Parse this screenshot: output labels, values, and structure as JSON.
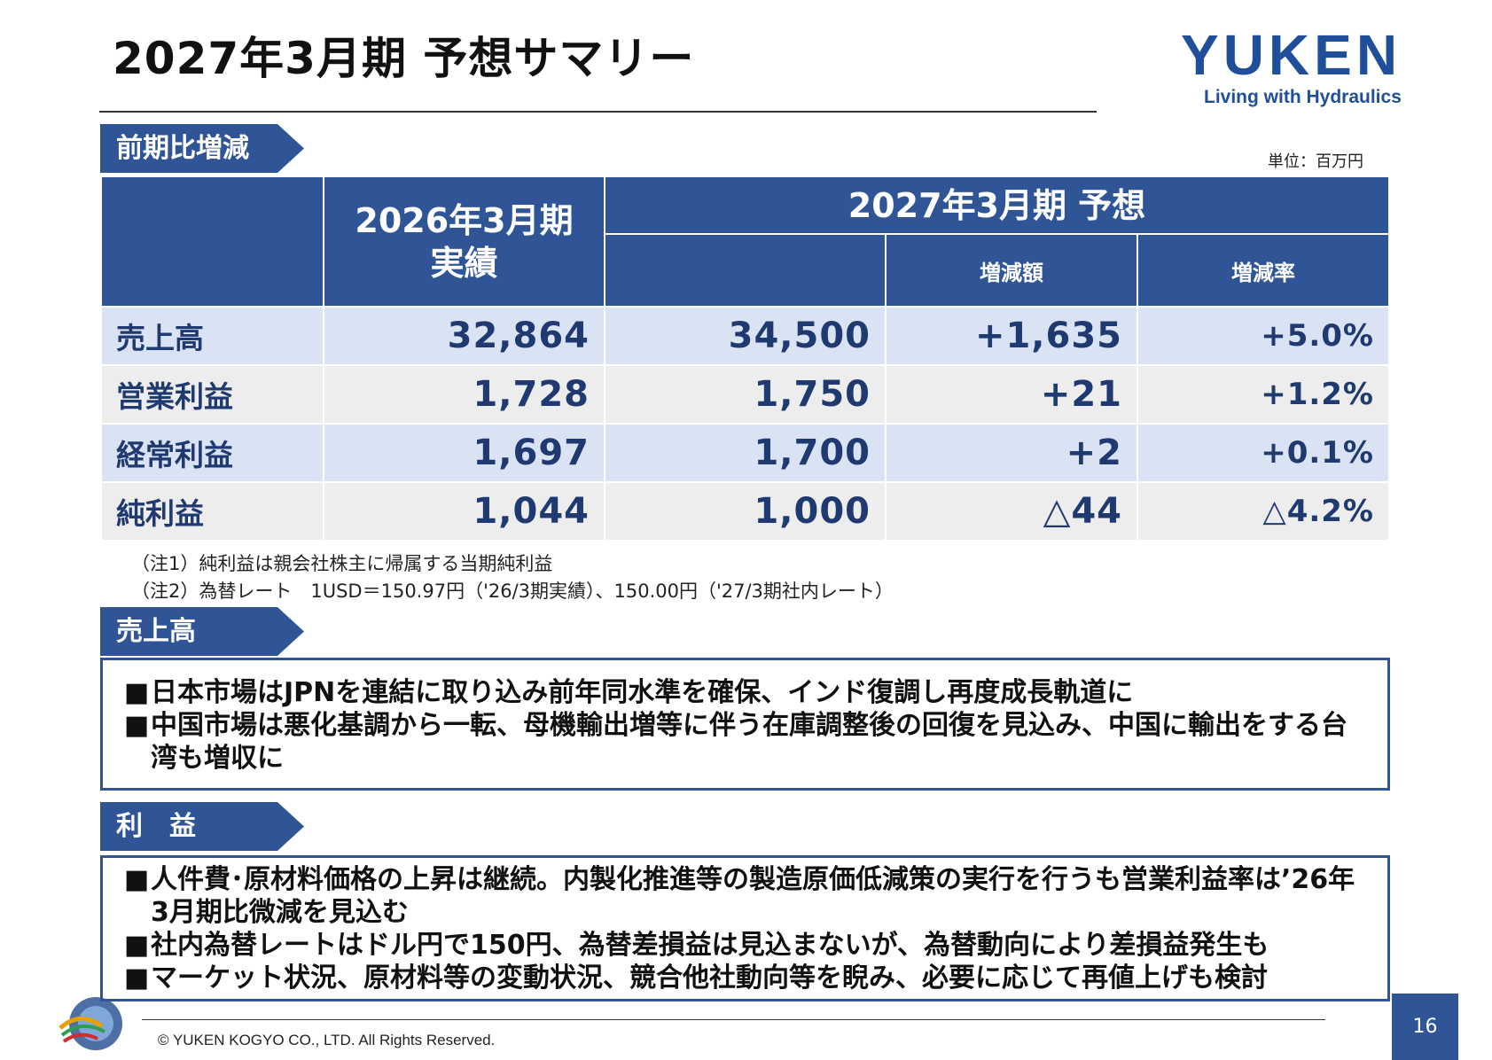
{
  "header": {
    "title": "2027年3月期 予想サマリー",
    "logo_text": "YUKEN",
    "logo_tagline": "Living with Hydraulics"
  },
  "yoy_section": {
    "label": "前期比増減",
    "unit": "単位：百万円",
    "columns": {
      "prev_actual_line1": "2026年3月期",
      "prev_actual_line2": "実績",
      "forecast": "2027年3月期 予想",
      "change_amount": "増減額",
      "change_rate": "増減率"
    },
    "rows": [
      {
        "label": "売上高",
        "prev": "32,864",
        "forecast": "34,500",
        "change": "+1,635",
        "rate": "+5.0%"
      },
      {
        "label": "営業利益",
        "prev": "1,728",
        "forecast": "1,750",
        "change": "+21",
        "rate": "+1.2%"
      },
      {
        "label": "経常利益",
        "prev": "1,697",
        "forecast": "1,700",
        "change": "+2",
        "rate": "+0.1%"
      },
      {
        "label": "純利益",
        "prev": "1,044",
        "forecast": "1,000",
        "change": "△44",
        "rate": "△4.2%"
      }
    ],
    "notes": [
      "（注1）純利益は親会社株主に帰属する当期純利益",
      "（注2）為替レート　1USD＝150.97円（'26/3期実績）、150.00円（'27/3期社内レート）"
    ]
  },
  "sales_section": {
    "label": "売上高",
    "bullet_mark": "■",
    "bullets": [
      "日本市場はJPNを連結に取り込み前年同水準を確保、インド復調し再度成長軌道に",
      "中国市場は悪化基調から一転、母機輸出増等に伴う在庫調整後の回復を見込み、中国に輸出をする台湾も増収に"
    ]
  },
  "profit_section": {
    "label": "利　益",
    "bullet_mark": "■",
    "bullets": [
      "人件費･原材料価格の上昇は継続。内製化推進等の製造原価低減策の実行を行うも営業利益率は’26年3月期比微減を見込む",
      "社内為替レートはドル円で150円、為替差損益は見込まないが、為替動向により差損益発生も",
      "マーケット状況、原材料等の変動状況、競合他社動向等を睨み、必要に応じて再値上げも検討"
    ]
  },
  "footer": {
    "copyright": "© YUKEN KOGYO CO., LTD. All Rights Reserved.",
    "page_number": "16"
  },
  "colors": {
    "brand_blue": "#2f5597",
    "row_light_blue": "#dae3f3",
    "row_light_gray": "#ededed"
  }
}
